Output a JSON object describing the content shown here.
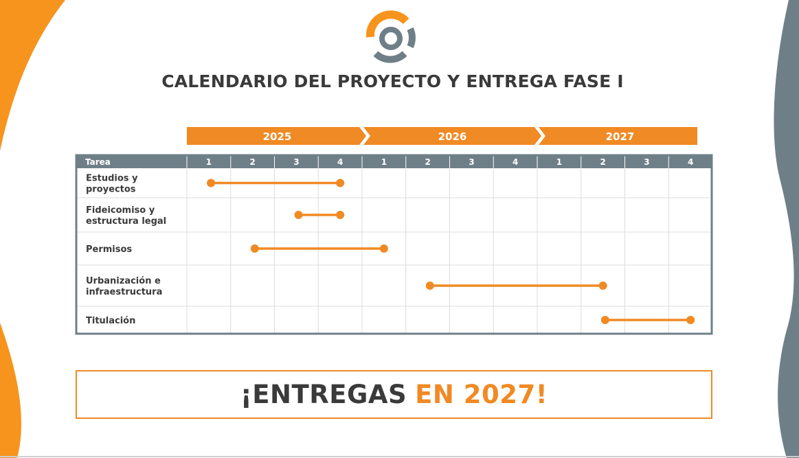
{
  "title": "CALENDARIO DEL PROYECTO Y ENTREGA FASE I",
  "colors": {
    "accent": "#F08A24",
    "header": "#6f7f88",
    "text": "#3a3a3a",
    "grid": "#dcdcdc"
  },
  "chart_data": {
    "type": "gantt",
    "years": [
      "2025",
      "2026",
      "2027"
    ],
    "quarters_per_year": 4,
    "quarter_labels": [
      "1",
      "2",
      "3",
      "4",
      "1",
      "2",
      "3",
      "4",
      "1",
      "2",
      "3",
      "4"
    ],
    "task_header": "Tarea",
    "tasks": [
      {
        "lines": [
          "Estudios y",
          "proyectos"
        ],
        "start": 1,
        "end": 4
      },
      {
        "lines": [
          "Fideicomiso y",
          "estructura legal"
        ],
        "start": 3,
        "end": 4
      },
      {
        "lines": [
          "Permisos"
        ],
        "start": 2,
        "end": 5
      },
      {
        "lines": [
          "Urbanización e",
          "infraestructura"
        ],
        "start": 6,
        "end": 10
      },
      {
        "lines": [
          "Titulación"
        ],
        "start": 10,
        "end": 12
      }
    ]
  },
  "banner": {
    "part1": "¡ENTREGAS",
    "part2": "EN 2027!"
  }
}
